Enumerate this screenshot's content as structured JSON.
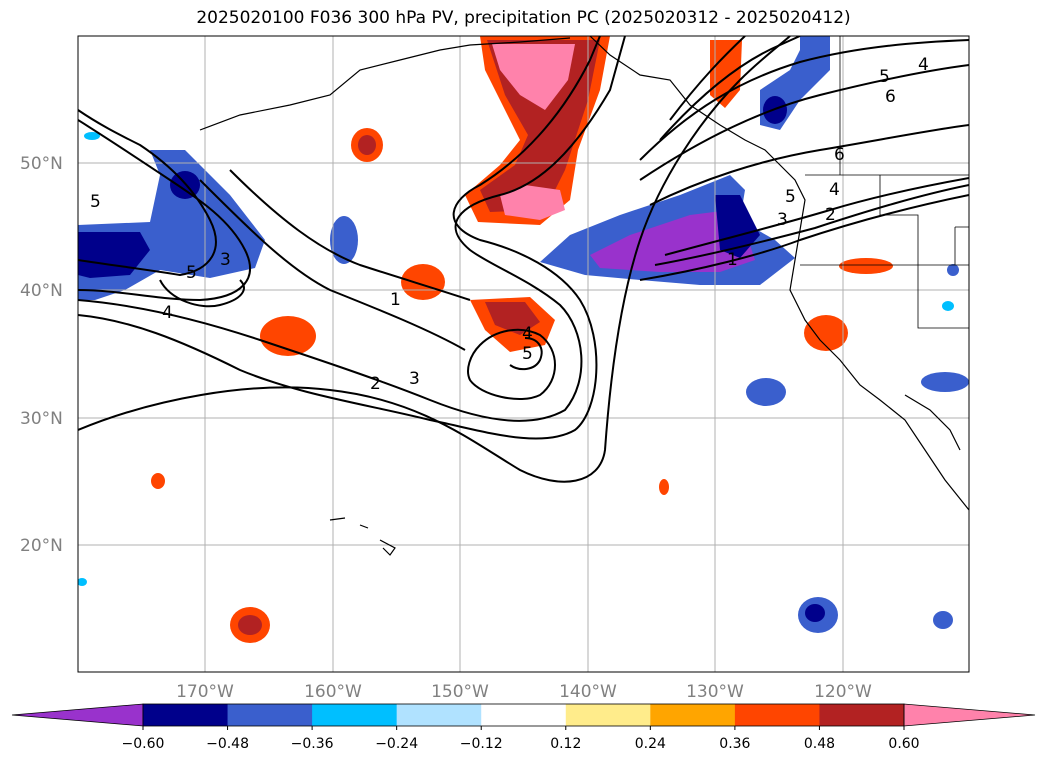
{
  "title": "2025020100 F036 300 hPa PV, precipitation PC (2025020312 - 2025020412)",
  "lat_labels": [
    "50°N",
    "40°N",
    "30°N",
    "20°N"
  ],
  "lon_labels": [
    "170°W",
    "160°W",
    "150°W",
    "140°W",
    "130°W",
    "120°W"
  ],
  "colorbar": {
    "colors": [
      "#9932cc",
      "#00008b",
      "#3a5fcd",
      "#00bfff",
      "#b0e2ff",
      "#ffffff",
      "#ffec8b",
      "#ffa500",
      "#ff4500",
      "#b22222",
      "#ff82ab"
    ],
    "tick_labels": [
      "−0.60",
      "−0.48",
      "−0.36",
      "−0.24",
      "−0.12",
      "0.12",
      "0.24",
      "0.36",
      "0.48",
      "0.60"
    ]
  },
  "contour_labels": [
    "5",
    "3",
    "5",
    "4",
    "1",
    "2",
    "3",
    "4",
    "5",
    "1",
    "3",
    "2",
    "4",
    "5",
    "6",
    "5",
    "4",
    "6"
  ]
}
